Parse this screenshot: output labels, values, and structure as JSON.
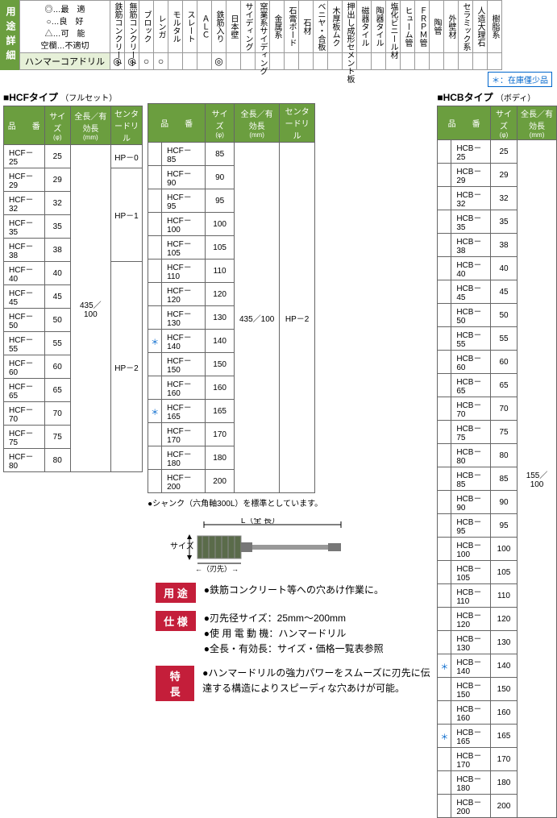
{
  "header": {
    "usage_detail": "用途詳細"
  },
  "legend": {
    "best": "◎…最　適",
    "good": "○…良　好",
    "ok": "△…可　能",
    "bad": "空欄…不適切"
  },
  "materials": [
    "鉄筋コンクリート",
    "無筋コンクリート",
    "ブロック",
    "レンガ",
    "モルタル",
    "スレート",
    "ＡＬＣ",
    "鉄筋入り",
    "日本壁",
    "サイディング",
    "窯業系サイディング",
    "金属系",
    "石膏ボード",
    "石材",
    "ベニヤ・合板",
    "木厚板ムク",
    "押出し成形セメント板",
    "磁器タイル",
    "陶器タイル",
    "塩化ビニール材",
    "ヒューム管",
    "ＦＲＰＭ管",
    "陶管",
    "外壁材",
    "セラミック系",
    "人造大理石",
    "樹脂系"
  ],
  "product": {
    "name": "ハンマーコアドリル",
    "symbols": [
      "◎",
      "◎",
      "○",
      "○",
      "",
      "",
      "",
      "◎",
      "",
      "",
      "",
      "",
      "",
      "",
      "",
      "",
      "",
      "",
      "",
      "",
      "",
      "",
      "",
      "",
      "",
      "",
      ""
    ]
  },
  "stock_note": "＊：在庫僅少品",
  "type_hcf": {
    "title": "■HCFタイプ",
    "sub": "（フルセット）",
    "cols": [
      "品　　番",
      "サイズ",
      "全長／有効長",
      "センタードリル"
    ],
    "col_subs": [
      "",
      "(φ)",
      "(mm)",
      ""
    ],
    "rows1": [
      {
        "pn": "HCF－ 25",
        "sz": "25",
        "len": "",
        "cd": "HP－0"
      },
      {
        "pn": "HCF－ 29",
        "sz": "29",
        "len": "",
        "cd": ""
      },
      {
        "pn": "HCF－ 32",
        "sz": "32",
        "len": "",
        "cd": "HP－1"
      },
      {
        "pn": "HCF－ 35",
        "sz": "35",
        "len": "",
        "cd": ""
      },
      {
        "pn": "HCF－ 38",
        "sz": "38",
        "len": "",
        "cd": ""
      },
      {
        "pn": "HCF－ 40",
        "sz": "40",
        "len": "",
        "cd": ""
      },
      {
        "pn": "HCF－ 45",
        "sz": "45",
        "len": "",
        "cd": ""
      },
      {
        "pn": "HCF－ 50",
        "sz": "50",
        "len": "",
        "cd": ""
      },
      {
        "pn": "HCF－ 55",
        "sz": "55",
        "len": "435／100",
        "cd": "HP－2"
      },
      {
        "pn": "HCF－ 60",
        "sz": "60",
        "len": "",
        "cd": ""
      },
      {
        "pn": "HCF－ 65",
        "sz": "65",
        "len": "",
        "cd": ""
      },
      {
        "pn": "HCF－ 70",
        "sz": "70",
        "len": "",
        "cd": ""
      },
      {
        "pn": "HCF－ 75",
        "sz": "75",
        "len": "",
        "cd": ""
      },
      {
        "pn": "HCF－ 80",
        "sz": "80",
        "len": "",
        "cd": ""
      }
    ],
    "rows2": [
      {
        "star": "",
        "pn": "HCF－ 85",
        "sz": "85"
      },
      {
        "star": "",
        "pn": "HCF－ 90",
        "sz": "90"
      },
      {
        "star": "",
        "pn": "HCF－ 95",
        "sz": "95"
      },
      {
        "star": "",
        "pn": "HCF－ 100",
        "sz": "100"
      },
      {
        "star": "",
        "pn": "HCF－ 105",
        "sz": "105"
      },
      {
        "star": "",
        "pn": "HCF－ 110",
        "sz": "110"
      },
      {
        "star": "",
        "pn": "HCF－ 120",
        "sz": "120"
      },
      {
        "star": "",
        "pn": "HCF－ 130",
        "sz": "130"
      },
      {
        "star": "＊",
        "pn": "HCF－ 140",
        "sz": "140"
      },
      {
        "star": "",
        "pn": "HCF－ 150",
        "sz": "150"
      },
      {
        "star": "",
        "pn": "HCF－ 160",
        "sz": "160"
      },
      {
        "star": "＊",
        "pn": "HCF－ 165",
        "sz": "165"
      },
      {
        "star": "",
        "pn": "HCF－ 170",
        "sz": "170"
      },
      {
        "star": "",
        "pn": "HCF－ 180",
        "sz": "180"
      },
      {
        "star": "",
        "pn": "HCF－ 200",
        "sz": "200"
      }
    ],
    "len2": "435／100",
    "cd2": "HP－2",
    "shank_note": "●シャンク（六角軸300L）を標準としています。"
  },
  "type_hcb": {
    "title": "■HCBタイプ",
    "sub": "（ボディ）",
    "cols": [
      "品　　番",
      "サイズ",
      "全長／有効長"
    ],
    "col_subs": [
      "",
      "(φ)",
      "(mm)"
    ],
    "len": "155／100",
    "rows": [
      {
        "star": "",
        "pn": "HCB－ 25",
        "sz": "25"
      },
      {
        "star": "",
        "pn": "HCB－ 29",
        "sz": "29"
      },
      {
        "star": "",
        "pn": "HCB－ 32",
        "sz": "32"
      },
      {
        "star": "",
        "pn": "HCB－ 35",
        "sz": "35"
      },
      {
        "star": "",
        "pn": "HCB－ 38",
        "sz": "38"
      },
      {
        "star": "",
        "pn": "HCB－ 40",
        "sz": "40"
      },
      {
        "star": "",
        "pn": "HCB－ 45",
        "sz": "45"
      },
      {
        "star": "",
        "pn": "HCB－ 50",
        "sz": "50"
      },
      {
        "star": "",
        "pn": "HCB－ 55",
        "sz": "55"
      },
      {
        "star": "",
        "pn": "HCB－ 60",
        "sz": "60"
      },
      {
        "star": "",
        "pn": "HCB－ 65",
        "sz": "65"
      },
      {
        "star": "",
        "pn": "HCB－ 70",
        "sz": "70"
      },
      {
        "star": "",
        "pn": "HCB－ 75",
        "sz": "75"
      },
      {
        "star": "",
        "pn": "HCB－ 80",
        "sz": "80"
      },
      {
        "star": "",
        "pn": "HCB－ 85",
        "sz": "85"
      },
      {
        "star": "",
        "pn": "HCB－ 90",
        "sz": "90"
      },
      {
        "star": "",
        "pn": "HCB－ 95",
        "sz": "95"
      },
      {
        "star": "",
        "pn": "HCB－ 100",
        "sz": "100"
      },
      {
        "star": "",
        "pn": "HCB－ 105",
        "sz": "105"
      },
      {
        "star": "",
        "pn": "HCB－ 110",
        "sz": "110"
      },
      {
        "star": "",
        "pn": "HCB－ 120",
        "sz": "120"
      },
      {
        "star": "",
        "pn": "HCB－ 130",
        "sz": "130"
      },
      {
        "star": "＊",
        "pn": "HCB－ 140",
        "sz": "140"
      },
      {
        "star": "",
        "pn": "HCB－ 150",
        "sz": "150"
      },
      {
        "star": "",
        "pn": "HCB－ 160",
        "sz": "160"
      },
      {
        "star": "＊",
        "pn": "HCB－ 165",
        "sz": "165"
      },
      {
        "star": "",
        "pn": "HCB－ 170",
        "sz": "170"
      },
      {
        "star": "",
        "pn": "HCB－ 180",
        "sz": "180"
      },
      {
        "star": "",
        "pn": "HCB－ 200",
        "sz": "200"
      }
    ]
  },
  "diagram": {
    "size_label": "サイズ",
    "l_label": "L（全 長）",
    "tip_label": "←（刃先）→"
  },
  "info": {
    "usage": {
      "label": "用 途",
      "text": "鉄筋コンクリート等への穴あけ作業に。"
    },
    "spec": {
      "label": "仕 様",
      "lines": [
        "刃先径サイズ：25mm～200mm",
        "使 用 電 動 機：ハンマードリル",
        "全長・有効長：サイズ・価格一覧表参照"
      ]
    },
    "feature": {
      "label": "特 長",
      "text": "ハンマードリルの強力パワーをスムーズに刃先に伝達する構造によりスピーディな穴あけが可能。"
    }
  },
  "colors": {
    "header_green": "#6b9e3f",
    "label_red": "#c41e3a",
    "link_blue": "#0066cc",
    "row_green": "#e6f0d8"
  }
}
